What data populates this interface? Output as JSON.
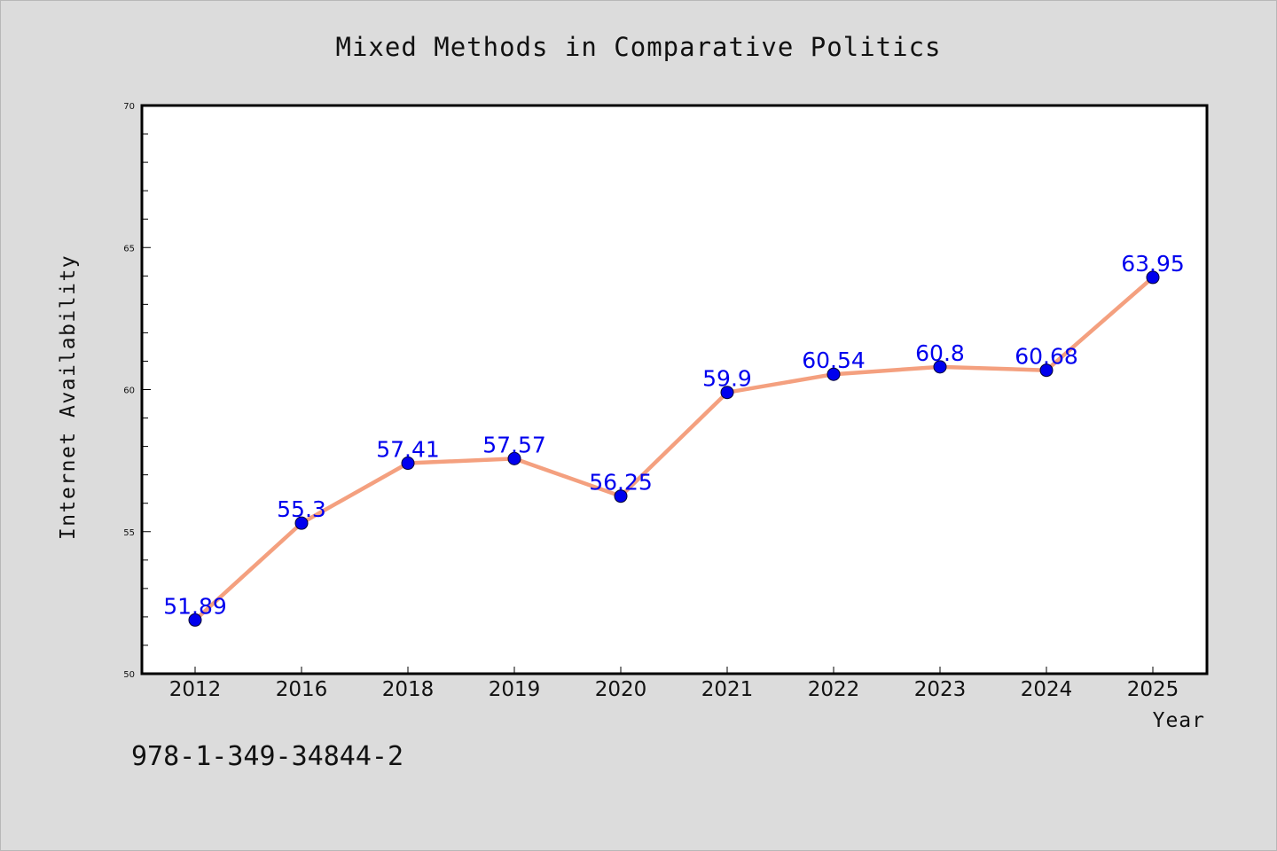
{
  "chart_data": {
    "type": "line",
    "title": "Mixed Methods in Comparative Politics",
    "xlabel": "Year",
    "ylabel": "Internet Availability",
    "categories": [
      "2012",
      "2016",
      "2018",
      "2019",
      "2020",
      "2021",
      "2022",
      "2023",
      "2024",
      "2025"
    ],
    "series": [
      {
        "values": [
          51.89,
          55.3,
          57.41,
          57.57,
          56.25,
          59.9,
          60.54,
          60.8,
          60.68,
          63.95
        ],
        "labels": [
          "51.89",
          "55.3",
          "57.41",
          "57.57",
          "56.25",
          "59.9",
          "60.54",
          "60.8",
          "60.68",
          "63.95"
        ]
      }
    ],
    "ylim": [
      50,
      70
    ],
    "yticks": [
      50,
      55,
      60,
      65,
      70
    ],
    "grid": false,
    "colors": {
      "line": "#f4a07f",
      "marker": "#0000ee",
      "label": "#0000ee",
      "plot_bg": "#ffffff",
      "page_bg": "#dcdcdc"
    }
  },
  "footer": {
    "isbn": "978-1-349-34844-2"
  }
}
